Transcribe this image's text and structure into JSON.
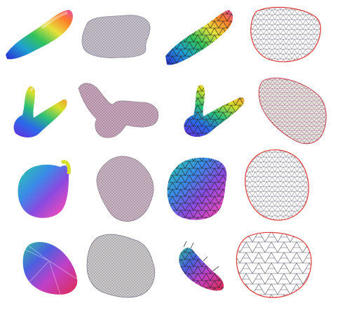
{
  "figure": {
    "rows": [
      {
        "cells": [
          {
            "kind": "shaded-surface",
            "shape": "elongated-sliver",
            "palette": [
              "#2a2ad8",
              "#1fa0d0",
              "#31c25a",
              "#e6e23a",
              "#ff7a2a",
              "#e64aa8"
            ]
          },
          {
            "kind": "flattened-mesh",
            "shape": "rounded-blob",
            "fill": "#c9c2cc",
            "wire": "#8a8a9a"
          },
          {
            "kind": "remeshed-surface",
            "shape": "elongated-sliver",
            "palette": [
              "#2a2ad8",
              "#1fa0d0",
              "#31c25a",
              "#e6e23a",
              "#ff7a2a",
              "#e64aa8"
            ]
          },
          {
            "kind": "wire-parameterization",
            "shape": "rounded-blob",
            "boundary": "#e03a3a",
            "wire": "#666677"
          }
        ]
      },
      {
        "cells": [
          {
            "kind": "shaded-surface",
            "shape": "forked-branch",
            "palette": [
              "#2a2ad8",
              "#1fa0d0",
              "#31c25a",
              "#e6e23a",
              "#ff7a2a",
              "#e64aa8"
            ]
          },
          {
            "kind": "flattened-mesh",
            "shape": "branching-blob",
            "fill": "#c8a8bc",
            "wire": "#8a7a8a"
          },
          {
            "kind": "remeshed-surface",
            "shape": "forked-branch",
            "palette": [
              "#2a2ad8",
              "#1fa0d0",
              "#31c25a",
              "#e6e23a",
              "#ff7a2a",
              "#e64aa8"
            ]
          },
          {
            "kind": "wire-parameterization",
            "shape": "tilted-rounded-box",
            "boundary": "#e03a3a",
            "wire": "#8a5a6a"
          }
        ]
      },
      {
        "cells": [
          {
            "kind": "shaded-surface",
            "shape": "bulbous-patch",
            "palette": [
              "#2a2ad8",
              "#1fa0d0",
              "#31c25a",
              "#e6e23a",
              "#ff7a2a",
              "#e64aa8"
            ]
          },
          {
            "kind": "flattened-mesh",
            "shape": "irregular-blob",
            "fill": "#c9b8c4",
            "wire": "#8a7a8a"
          },
          {
            "kind": "remeshed-surface",
            "shape": "bulbous-patch",
            "palette": [
              "#2a2ad8",
              "#1fa0d0",
              "#31c25a",
              "#e6e23a",
              "#ff7a2a",
              "#e64aa8"
            ]
          },
          {
            "kind": "wire-parameterization",
            "shape": "rounded-blob",
            "boundary": "#e03a3a",
            "wire": "#666677"
          }
        ]
      },
      {
        "cells": [
          {
            "kind": "shaded-surface",
            "shape": "faceted-cone",
            "palette": [
              "#2a2ad8",
              "#1fa0d0",
              "#31c25a",
              "#e6e23a",
              "#ff7a2a",
              "#e64aa8"
            ]
          },
          {
            "kind": "flattened-mesh",
            "shape": "jagged-blob",
            "fill": "#d0cccc",
            "wire": "#7a7a8a"
          },
          {
            "kind": "remeshed-surface",
            "shape": "thin-spiky-strip",
            "palette": [
              "#2a2ad8",
              "#1fa0d0",
              "#31c25a",
              "#e6e23a",
              "#ff7a2a",
              "#e64aa8"
            ]
          },
          {
            "kind": "wire-parameterization",
            "shape": "coarse-polygon",
            "boundary": "#e03a3a",
            "wire": "#555566"
          }
        ]
      }
    ]
  }
}
